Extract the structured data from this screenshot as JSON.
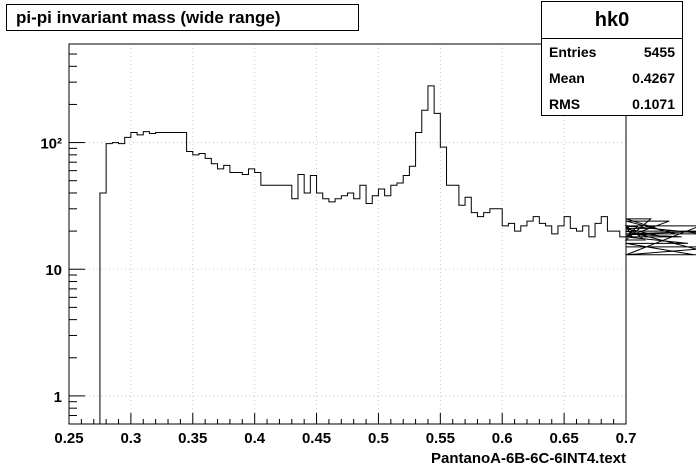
{
  "title": "pi-pi invariant mass (wide range)",
  "stats": {
    "name": "hk0",
    "rows": [
      {
        "label": "Entries",
        "value": "5455"
      },
      {
        "label": "Mean",
        "value": "0.4267"
      },
      {
        "label": "RMS",
        "value": "0.1071"
      }
    ]
  },
  "colors": {
    "line": "#000000",
    "grid": "#c8c8c8",
    "background": "#ffffff"
  },
  "chart_data": {
    "type": "histogram",
    "title": "pi-pi invariant mass (wide range)",
    "xlabel": "PantanoA-6B-6C-6INT4.text",
    "ylabel": "",
    "xlim": [
      0.25,
      0.7
    ],
    "ylim": [
      0.6,
      600
    ],
    "yscale": "log",
    "grid": true,
    "legend": "none",
    "x_ticks": [
      0.25,
      0.3,
      0.35,
      0.4,
      0.45,
      0.5,
      0.55,
      0.6,
      0.65,
      0.7
    ],
    "x_tick_labels": [
      "0.25",
      "0.3",
      "0.35",
      "0.4",
      "0.45",
      "0.5",
      "0.55",
      "0.6",
      "0.65",
      "0.7"
    ],
    "y_ticks": [
      1,
      10,
      100
    ],
    "y_tick_labels": [
      "1",
      "10",
      "10²"
    ],
    "bin_width": 0.005,
    "first_bin_start": 0.275,
    "values": [
      40,
      98,
      100,
      98,
      110,
      120,
      115,
      122,
      118,
      120,
      120,
      120,
      120,
      120,
      85,
      80,
      82,
      75,
      68,
      62,
      66,
      58,
      58,
      56,
      62,
      58,
      46,
      46,
      46,
      46,
      46,
      36,
      56,
      40,
      55,
      40,
      36,
      34,
      36,
      38,
      40,
      36,
      46,
      33,
      38,
      43,
      38,
      46,
      48,
      55,
      65,
      120,
      180,
      280,
      170,
      92,
      46,
      46,
      32,
      37,
      28,
      26,
      28,
      30,
      30,
      22,
      23,
      20,
      22,
      24,
      26,
      23,
      22,
      19,
      22,
      26,
      21,
      20,
      22,
      18,
      23,
      26,
      20,
      20,
      18,
      22,
      18,
      22,
      17,
      25,
      21,
      18,
      24,
      19,
      18,
      16,
      13,
      22,
      19,
      20,
      13,
      15
    ]
  }
}
